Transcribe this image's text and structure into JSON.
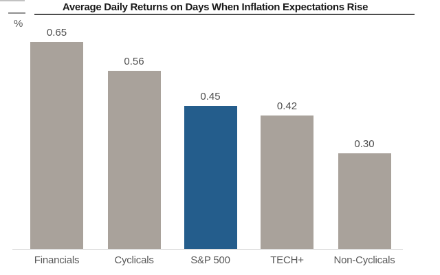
{
  "chart_data": {
    "type": "bar",
    "title": "Average Daily Returns on Days When Inflation Expectations Rise",
    "ylabel": "%",
    "categories": [
      "Financials",
      "Cyclicals",
      "S&P 500",
      "TECH+",
      "Non-Cyclicals"
    ],
    "values": [
      0.65,
      0.56,
      0.45,
      0.42,
      0.3
    ],
    "value_labels": [
      "0.65",
      "0.56",
      "0.45",
      "0.42",
      "0.30"
    ],
    "highlighted_category": "S&P 500",
    "ylim": [
      0,
      0.78
    ],
    "grid": false,
    "legend": false,
    "xlabel": ""
  },
  "colors": {
    "bar_default": "#a9a29b",
    "bar_highlight": "#245d8c",
    "title_text": "#1a1a1a",
    "title_rule": "#4d4d4d",
    "value_label": "#4d4d4d",
    "category_label": "#595959",
    "baseline": "#d0d0d0"
  }
}
